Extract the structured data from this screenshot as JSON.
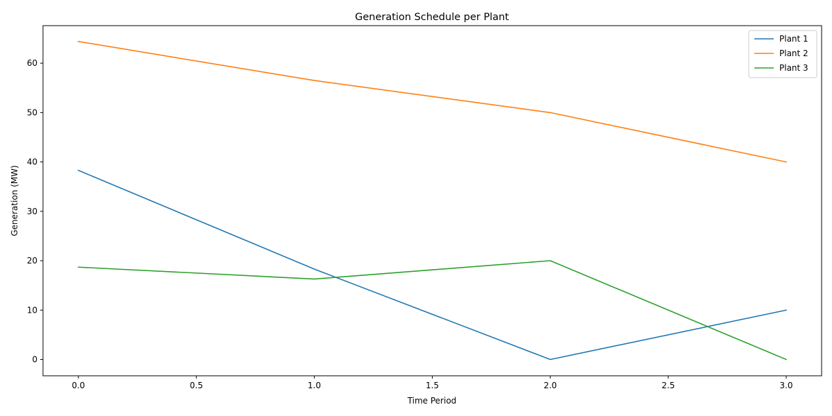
{
  "chart_data": {
    "type": "line",
    "title": "Generation Schedule per Plant",
    "xlabel": "Time Period",
    "ylabel": "Generation (MW)",
    "x": [
      0,
      1,
      2,
      3
    ],
    "xlim": [
      -0.15,
      3.15
    ],
    "ylim": [
      -3.3,
      67.6
    ],
    "xticks": [
      0.0,
      0.5,
      1.0,
      1.5,
      2.0,
      2.5,
      3.0
    ],
    "xtick_labels": [
      "0.0",
      "0.5",
      "1.0",
      "1.5",
      "2.0",
      "2.5",
      "3.0"
    ],
    "yticks": [
      0,
      10,
      20,
      30,
      40,
      50,
      60
    ],
    "ytick_labels": [
      "0",
      "10",
      "20",
      "30",
      "40",
      "50",
      "60"
    ],
    "grid": false,
    "legend_position": "top-right",
    "series": [
      {
        "name": "Plant 1",
        "color": "#1f77b4",
        "values": [
          38.3,
          18.3,
          0.0,
          10.0
        ]
      },
      {
        "name": "Plant 2",
        "color": "#ff7f0e",
        "values": [
          64.4,
          56.5,
          50.0,
          40.0
        ]
      },
      {
        "name": "Plant 3",
        "color": "#2ca02c",
        "values": [
          18.7,
          16.3,
          20.0,
          0.0
        ]
      }
    ]
  }
}
